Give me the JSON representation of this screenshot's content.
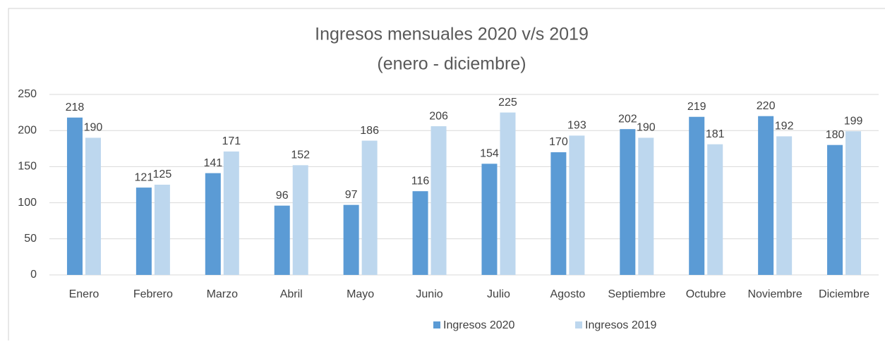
{
  "chart_data": {
    "type": "bar",
    "title": "Ingresos mensuales 2020 v/s 2019",
    "subtitle": "(enero - diciembre)",
    "categories": [
      "Enero",
      "Febrero",
      "Marzo",
      "Abril",
      "Mayo",
      "Junio",
      "Julio",
      "Agosto",
      "Septiembre",
      "Octubre",
      "Noviembre",
      "Diciembre"
    ],
    "series": [
      {
        "name": "Ingresos 2020",
        "color": "#5b9bd5",
        "values": [
          218,
          121,
          141,
          96,
          97,
          116,
          154,
          170,
          202,
          219,
          220,
          180
        ]
      },
      {
        "name": "Ingresos 2019",
        "color": "#bdd7ee",
        "values": [
          190,
          125,
          171,
          152,
          186,
          206,
          225,
          193,
          190,
          181,
          192,
          199
        ]
      }
    ],
    "ylim": [
      0,
      250
    ],
    "yticks": [
      0,
      50,
      100,
      150,
      200,
      250
    ],
    "grid": true,
    "legend": "bottom"
  }
}
